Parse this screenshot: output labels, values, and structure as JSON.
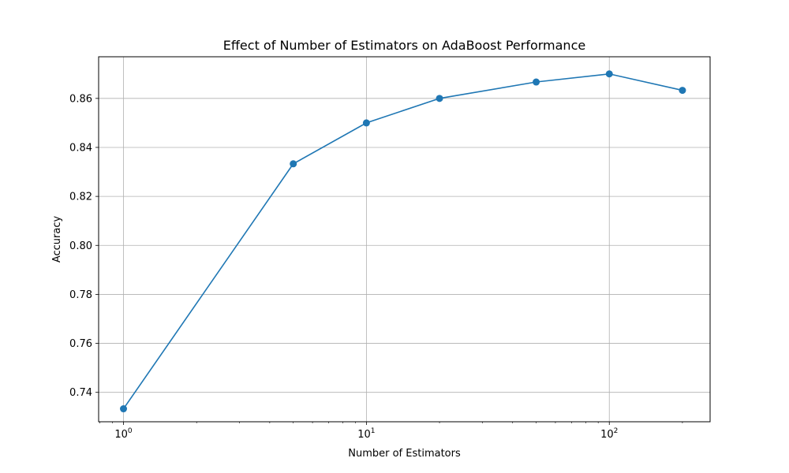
{
  "chart_data": {
    "type": "line",
    "title": "Effect of Number of Estimators on AdaBoost Performance",
    "xlabel": "Number of Estimators",
    "ylabel": "Accuracy",
    "x_scale": "log",
    "xlim": [
      0.79,
      260
    ],
    "ylim": [
      0.728,
      0.877
    ],
    "x_ticks": [
      {
        "value": 1,
        "base": "10",
        "exp": "0"
      },
      {
        "value": 10,
        "base": "10",
        "exp": "1"
      },
      {
        "value": 100,
        "base": "10",
        "exp": "2"
      }
    ],
    "y_ticks": [
      0.74,
      0.76,
      0.78,
      0.8,
      0.82,
      0.84,
      0.86
    ],
    "y_tick_labels": [
      "0.74",
      "0.76",
      "0.78",
      "0.80",
      "0.82",
      "0.84",
      "0.86"
    ],
    "grid": true,
    "series": [
      {
        "x": [
          1,
          5,
          10,
          20,
          50,
          100,
          200
        ],
        "values": [
          0.7333,
          0.8333,
          0.85,
          0.86,
          0.8667,
          0.87,
          0.8633
        ],
        "color": "#1f77b4",
        "marker": "circle"
      }
    ]
  }
}
